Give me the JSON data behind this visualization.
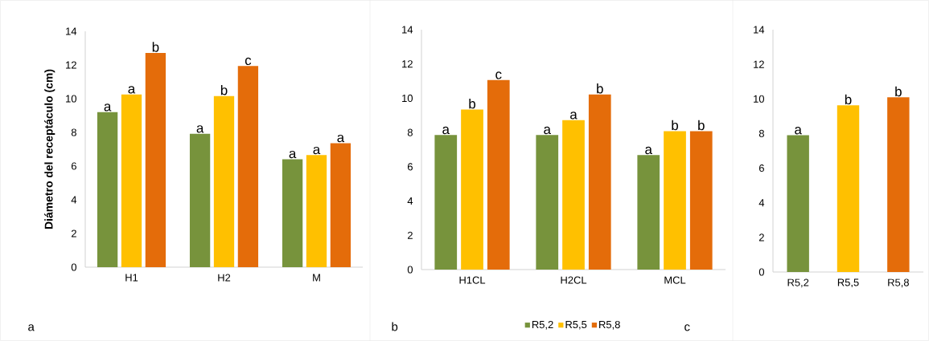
{
  "chart_data": [
    {
      "type": "bar",
      "ylabel": "Diámetro del receptáculo (cm)",
      "categories": [
        "H1",
        "H2",
        "M"
      ],
      "ylim": [
        0,
        14
      ],
      "yticks": [
        0,
        2,
        4,
        6,
        8,
        10,
        12,
        14
      ],
      "legend": false,
      "series": [
        {
          "color": "#77933c",
          "values": [
            9.2,
            7.92,
            6.41
          ]
        },
        {
          "color": "#ffc000",
          "values": [
            10.25,
            10.16,
            6.65
          ]
        },
        {
          "color": "#e46c0a",
          "values": [
            12.72,
            11.94,
            7.36
          ]
        }
      ],
      "annotations": [
        "a",
        "a",
        "b",
        "a",
        "b",
        "c",
        "a",
        "a",
        "a",
        "a"
      ]
    },
    {
      "type": "bar",
      "categories": [
        "H1CL",
        "H2CL",
        "MCL"
      ],
      "ylim": [
        0,
        14
      ],
      "yticks": [
        0,
        2,
        4,
        6,
        8,
        10,
        12,
        14
      ],
      "legend": "bottom",
      "series": [
        {
          "name": "R5,2",
          "color": "#77933c",
          "values": [
            7.85,
            7.85,
            6.68
          ]
        },
        {
          "name": "R5,5",
          "color": "#ffc000",
          "values": [
            9.34,
            8.72,
            8.08
          ]
        },
        {
          "name": "R5,8",
          "color": "#e46c0a",
          "values": [
            11.06,
            10.22,
            8.08
          ]
        }
      ],
      "annotations": [
        "a",
        "b",
        "c",
        "a",
        "a",
        "b",
        "a",
        "b",
        "b",
        "b"
      ]
    },
    {
      "type": "bar",
      "categories": [
        "R5,2",
        "R5,5",
        "R5,8"
      ],
      "ylim": [
        0,
        14
      ],
      "yticks": [
        0,
        2,
        4,
        6,
        8,
        10,
        12,
        14
      ],
      "legend": false,
      "values": [
        7.9,
        9.63,
        10.09
      ],
      "colors": [
        "#77933c",
        "#ffc000",
        "#e46c0a"
      ],
      "annotations": [
        "a",
        "b",
        "b",
        "c"
      ]
    }
  ]
}
